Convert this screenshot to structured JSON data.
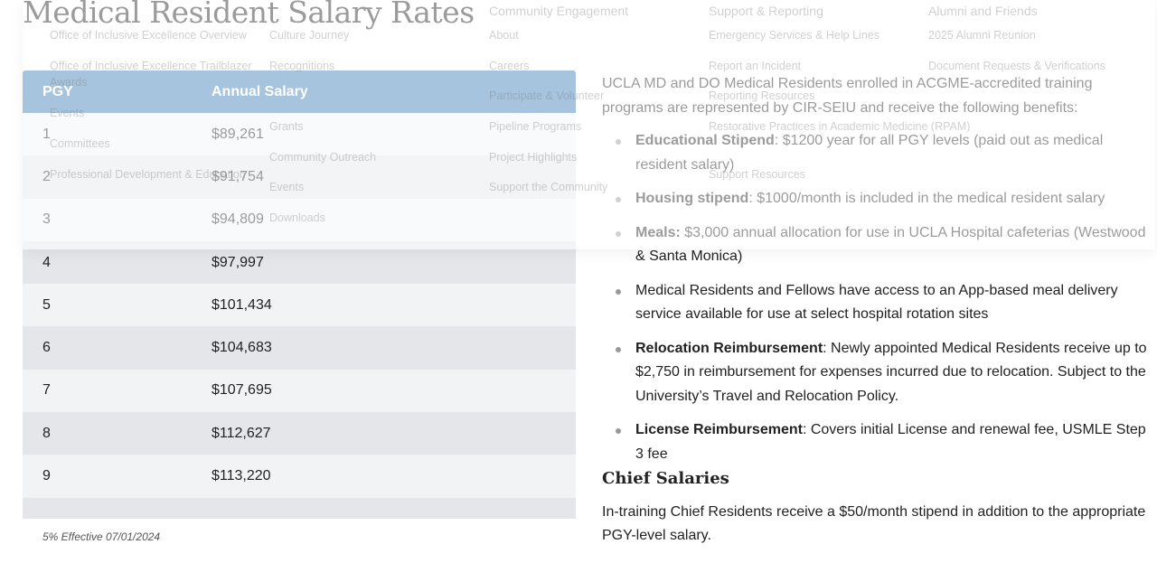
{
  "title": "Medical Resident Salary Rates",
  "table": {
    "headers": [
      "PGY",
      "Annual Salary"
    ],
    "rows": [
      [
        "1",
        "$89,261"
      ],
      [
        "2",
        "$91,754"
      ],
      [
        "3",
        "$94,809"
      ],
      [
        "4",
        "$97,997"
      ],
      [
        "5",
        "$101,434"
      ],
      [
        "6",
        "$104,683"
      ],
      [
        "7",
        "$107,695"
      ],
      [
        "8",
        "$112,627"
      ],
      [
        "9",
        "$113,220"
      ]
    ],
    "note": "5% Effective 07/01/2024"
  },
  "intro": "UCLA MD and DO Medical Residents enrolled in ACGME-accredited training programs are represented by CIR-SEIU and receive the following benefits:",
  "benefits": [
    {
      "bold": "Educational Stipend",
      "text": ": $1200 year for all PGY levels (paid out as medical resident salary)"
    },
    {
      "bold": "Housing stipend",
      "text": ": $1000/month is included in the medical resident salary"
    },
    {
      "bold": "Meals:",
      "text": " $3,000 annual allocation for use in UCLA Hospital cafeterias (Westwood & Santa Monica)"
    },
    {
      "bold": "",
      "text": "Medical Residents and Fellows have access to an App-based meal delivery service available for use at select hospital rotation sites"
    },
    {
      "bold": "Relocation Reimbursement",
      "text": ": Newly appointed Medical Residents receive up to $2,750 in reimbursement for expenses incurred due to relocation. Subject to the University’s Travel and Relocation Policy."
    },
    {
      "bold": "License Reimbursement",
      "text": ": Covers initial License and renewal fee, USMLE Step 3 fee"
    }
  ],
  "chief": {
    "title": "Chief Salaries",
    "text": "In-training Chief Residents receive a $50/month stipend in addition to the appropriate PGY-level salary."
  },
  "menu": {
    "col1": [
      "Office of Inclusive Excellence Overview",
      "Office of Inclusive Excellence Trailblazer",
      "Awards",
      "Events",
      "Committees",
      "Professional Development & Education"
    ],
    "col2": [
      "Culture Journey",
      "Recognitions",
      "Grants",
      "Community Outreach",
      "Events",
      "Downloads"
    ],
    "col3_heading": "Community Engagement",
    "col3": [
      "About",
      "Careers",
      "Participate & Volunteer",
      "Pipeline Programs",
      "Project Highlights",
      "Support the Community"
    ],
    "col4_heading": "Support & Reporting",
    "col4": [
      "Emergency Services & Help Lines",
      "Report an Incident",
      "Reporting Resources",
      "Restorative Practices in Academic Medicine (RPAM)",
      "Support Resources"
    ],
    "col5_heading": "Alumni and Friends",
    "col5": [
      "2025 Alumni Reunion",
      "Document Requests & Verifications"
    ]
  }
}
